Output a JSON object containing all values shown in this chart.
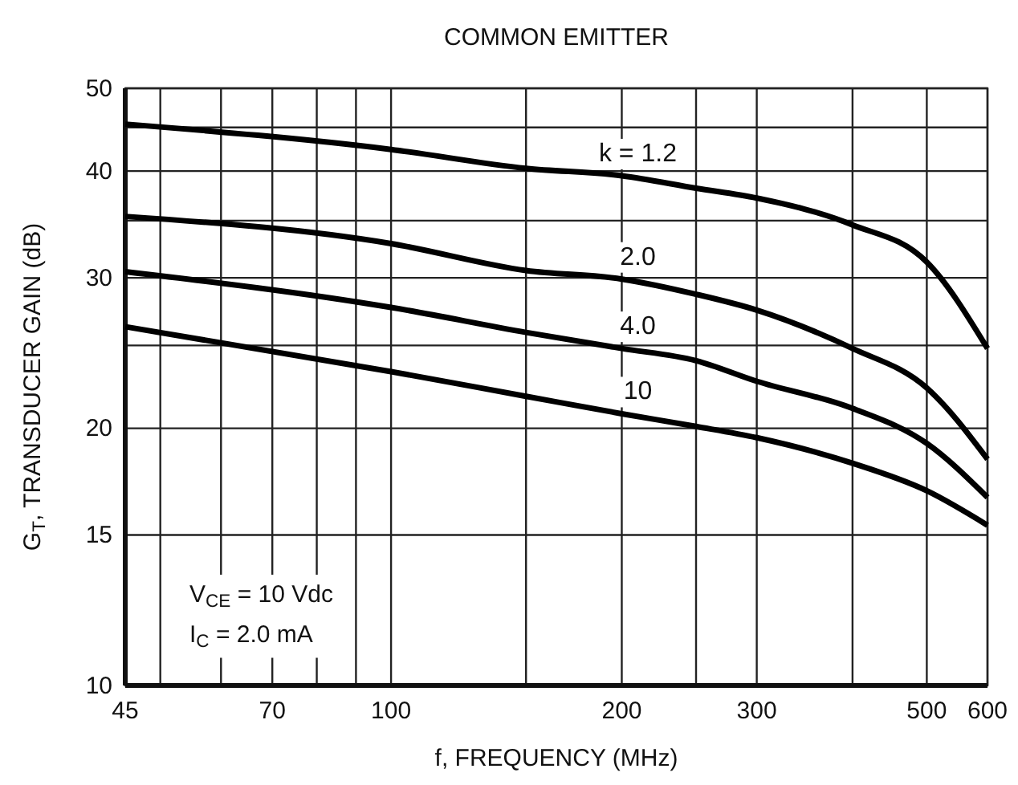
{
  "chart_data": {
    "type": "line",
    "title": "COMMON EMITTER",
    "xlabel": "f, FREQUENCY (MHz)",
    "ylabel": "G$_{T}$, TRANSDUCER GAIN (dB)",
    "annotations": [
      "V$_{CE}$ = 10 Vdc",
      "I$_{C}$ = 2.0 mA"
    ],
    "x": [
      45,
      100,
      150,
      200,
      250,
      300,
      400,
      500,
      600
    ],
    "series": [
      {
        "name": "k = 1.2",
        "color": "#000000",
        "values": [
          45.4,
          42.4,
          40.3,
          39.5,
          38.2,
          37.2,
          34.6,
          31.3,
          24.8
        ]
      },
      {
        "name": "2.0",
        "color": "#000000",
        "values": [
          35.4,
          32.9,
          30.6,
          29.9,
          28.7,
          27.5,
          24.8,
          22.3,
          18.4
        ]
      },
      {
        "name": "4.0",
        "color": "#000000",
        "values": [
          30.5,
          27.7,
          25.9,
          24.8,
          24.0,
          22.7,
          21.1,
          19.2,
          16.6
        ]
      },
      {
        "name": "10",
        "color": "#000000",
        "values": [
          26.3,
          23.3,
          21.8,
          20.8,
          20.1,
          19.5,
          18.2,
          16.9,
          15.4
        ]
      }
    ],
    "log": "xy",
    "xlim": [
      45,
      600
    ],
    "ylim": [
      10,
      50
    ],
    "xticks": [
      45,
      {
        "value": 50,
        "label": null
      },
      {
        "value": 60,
        "label": null
      },
      70,
      {
        "value": 80,
        "label": null
      },
      {
        "value": 90,
        "label": null
      },
      100,
      {
        "value": 150,
        "label": null
      },
      200,
      {
        "value": 250,
        "label": null
      },
      300,
      {
        "value": 400,
        "label": null
      },
      500,
      600
    ],
    "yticks": [
      10,
      15,
      20,
      {
        "value": 25,
        "label": null
      },
      30,
      {
        "value": 35,
        "label": null
      },
      40,
      {
        "value": 45,
        "label": null
      },
      50
    ],
    "grid": true,
    "marker": "none",
    "line_style": "solid"
  }
}
